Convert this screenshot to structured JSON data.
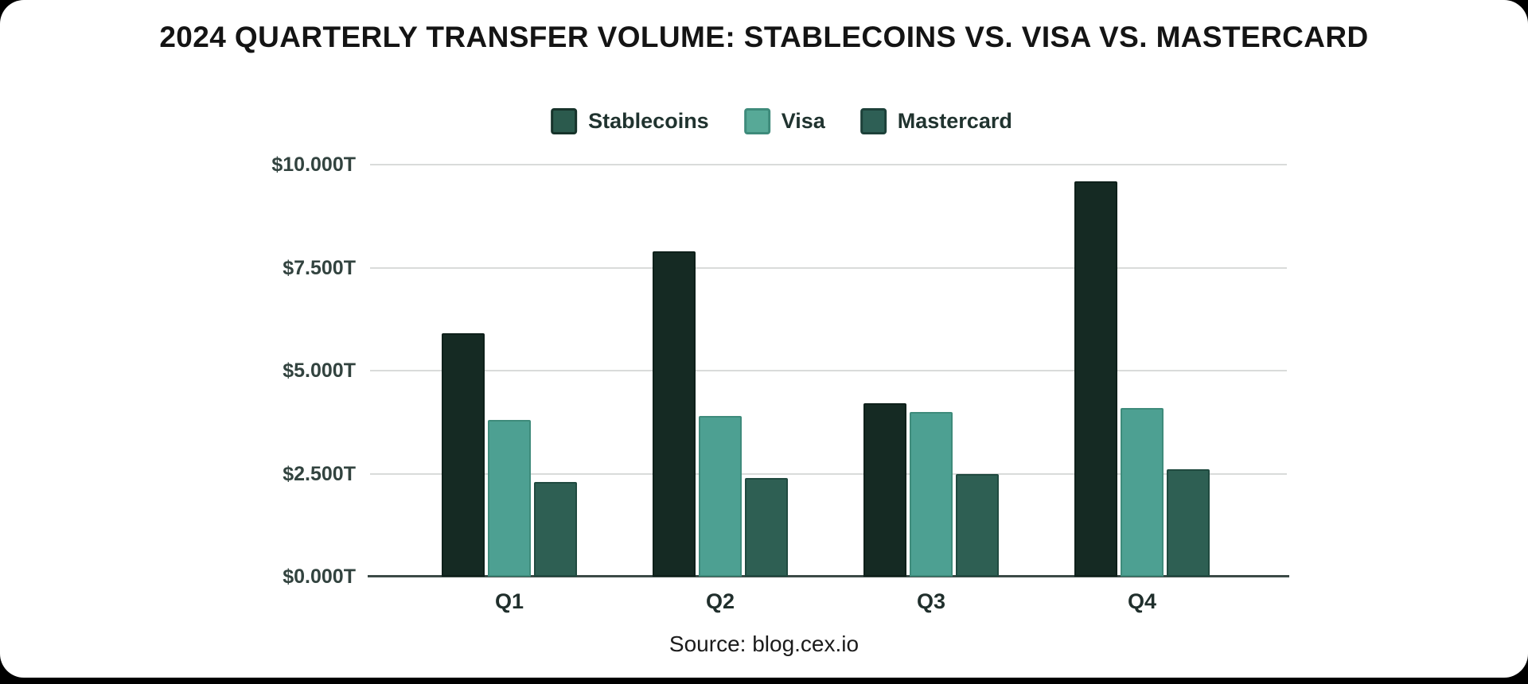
{
  "page": {
    "background_color": "#000000",
    "card_color": "#ffffff"
  },
  "header": {
    "title": "2024 QUARTERLY TRANSFER VOLUME: STABLECOINS VS. VISA VS. MASTERCARD"
  },
  "footer": {
    "source": "Source: blog.cex.io"
  },
  "chart_data": {
    "type": "bar",
    "title": "2024 QUARTERLY TRANSFER VOLUME: STABLECOINS VS. VISA VS. MASTERCARD",
    "unit": "trillions USD",
    "categories": [
      "Q1",
      "Q2",
      "Q3",
      "Q4"
    ],
    "series": [
      {
        "name": "Stablecoins",
        "values": [
          5.9,
          7.9,
          4.2,
          9.6
        ],
        "color": "#152a23",
        "border_color": "#0e201a",
        "legend_color": "#2b5a4d",
        "legend_border": "#17332b"
      },
      {
        "name": "Visa",
        "values": [
          3.8,
          3.9,
          4.0,
          4.1
        ],
        "color": "#4da092",
        "border_color": "#3e8b7b",
        "legend_color": "#57a997",
        "legend_border": "#3e8b7b"
      },
      {
        "name": "Mastercard",
        "values": [
          2.3,
          2.4,
          2.5,
          2.6
        ],
        "color": "#2e5f53",
        "border_color": "#204a40",
        "legend_color": "#2e5f55",
        "legend_border": "#1d413a"
      }
    ],
    "y_axis": {
      "ticks": [
        {
          "label": "$0.000T",
          "value": 0
        },
        {
          "label": "$2.500T",
          "value": 2.5
        },
        {
          "label": "$5.000T",
          "value": 5
        },
        {
          "label": "$7.500T",
          "value": 7.5
        },
        {
          "label": "$10.000T",
          "value": 10
        }
      ],
      "ylim": [
        0,
        10
      ]
    },
    "grid": true,
    "legend_position": "top"
  }
}
